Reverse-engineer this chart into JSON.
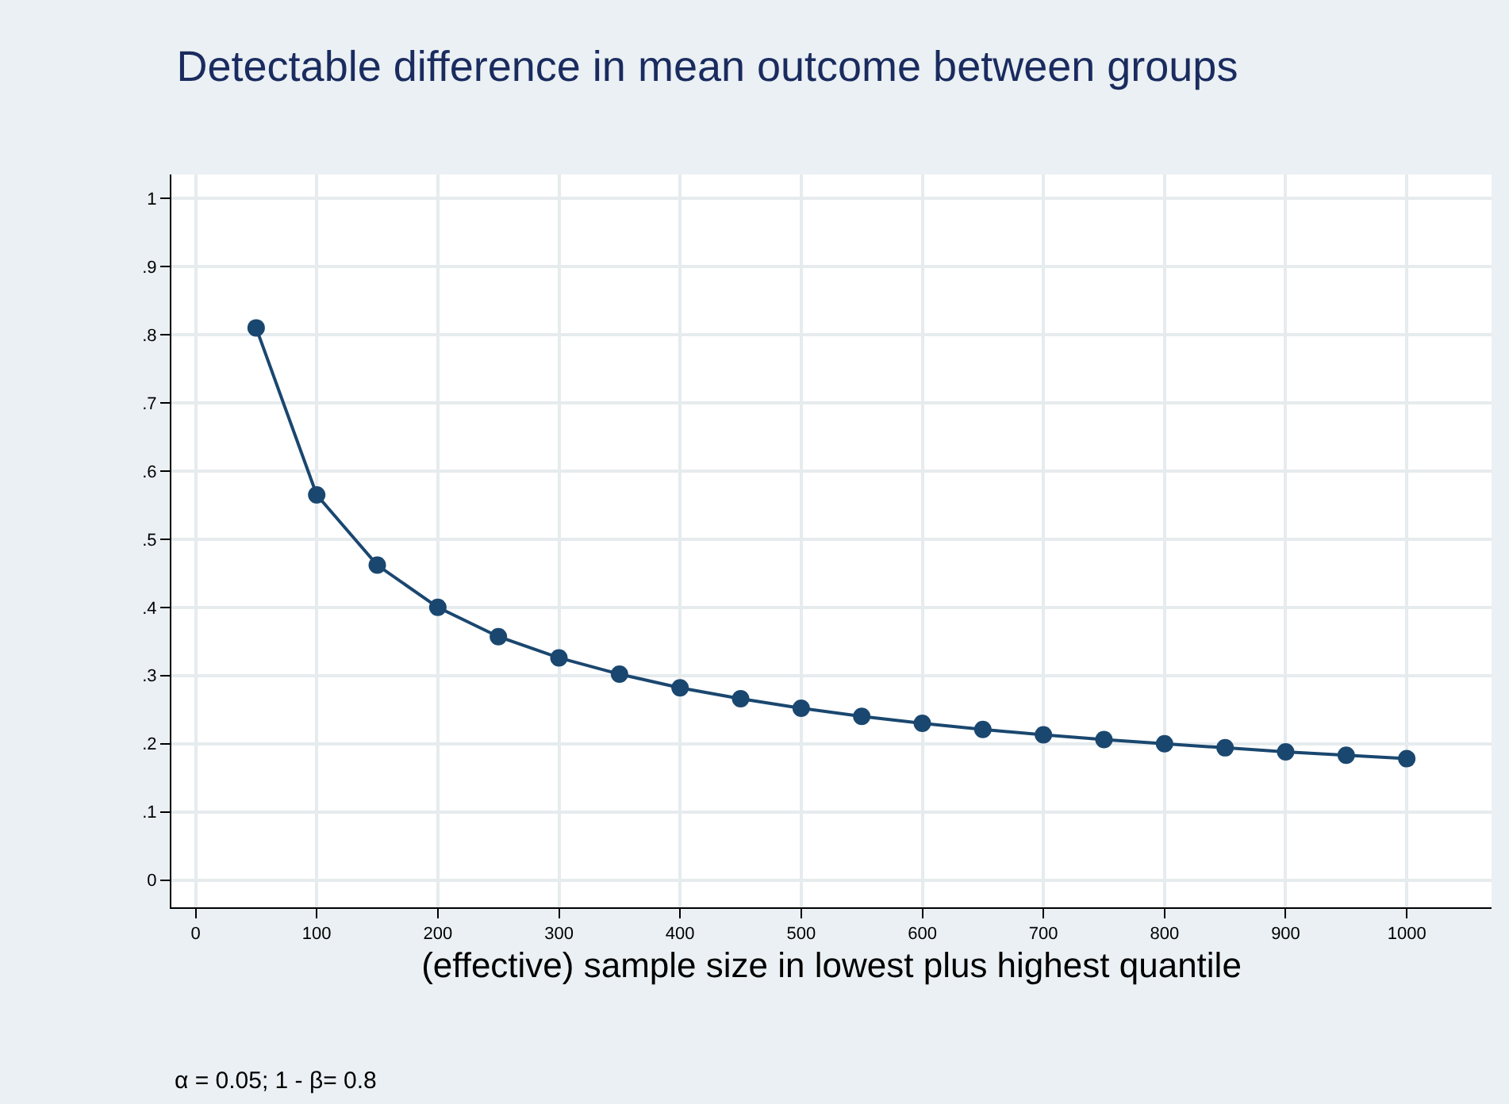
{
  "chart_data": {
    "type": "line",
    "title": "Detectable difference in mean outcome between groups",
    "xlabel": "(effective) sample size in lowest plus highest quantile",
    "annotations": [
      "α = 0.05; 1 - β= 0.8"
    ],
    "x": [
      50,
      100,
      150,
      200,
      250,
      300,
      350,
      400,
      450,
      500,
      550,
      600,
      650,
      700,
      750,
      800,
      850,
      900,
      950,
      1000
    ],
    "series": [
      {
        "color": "#1a476f",
        "values": [
          0.81,
          0.565,
          0.462,
          0.4,
          0.357,
          0.326,
          0.302,
          0.282,
          0.266,
          0.252,
          0.24,
          0.23,
          0.221,
          0.213,
          0.206,
          0.2,
          0.194,
          0.188,
          0.183,
          0.178
        ]
      }
    ],
    "xlim": [
      -20,
      1070
    ],
    "xticks": [
      0,
      100,
      200,
      300,
      400,
      500,
      600,
      700,
      800,
      900,
      1000
    ],
    "ylim": [
      -0.04,
      1.035
    ],
    "yticks": [
      0,
      {
        "value": 0.1,
        "label": ".1"
      },
      {
        "value": 0.2,
        "label": ".2"
      },
      {
        "value": 0.3,
        "label": ".3"
      },
      {
        "value": 0.4,
        "label": ".4"
      },
      {
        "value": 0.5,
        "label": ".5"
      },
      {
        "value": 0.6,
        "label": ".6"
      },
      {
        "value": 0.7,
        "label": ".7"
      },
      {
        "value": 0.8,
        "label": ".8"
      },
      {
        "value": 0.9,
        "label": ".9"
      },
      1
    ],
    "grid": true,
    "marker": "circle",
    "line_style": "solid"
  }
}
